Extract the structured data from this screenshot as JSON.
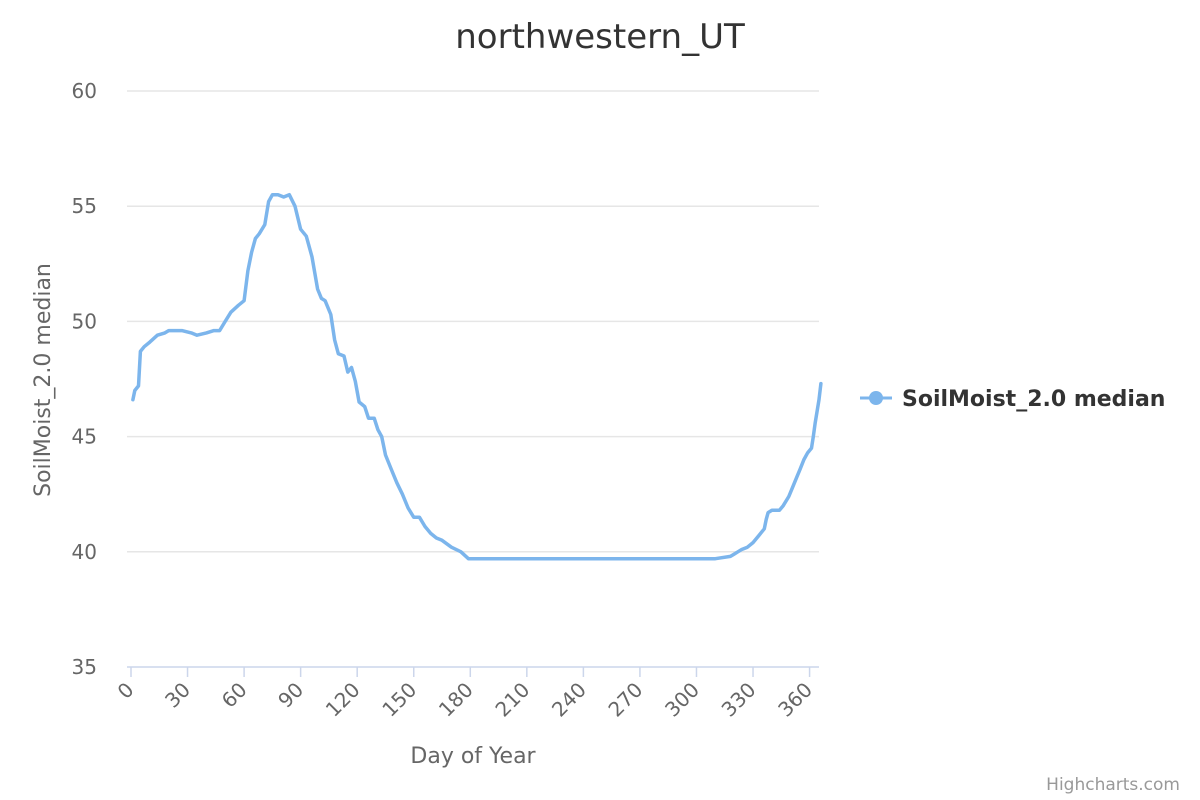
{
  "chart_data": {
    "type": "line",
    "title": "northwestern_UT",
    "xlabel": "Day of Year",
    "ylabel": "SoilMoist_2.0 median",
    "xlim": [
      0,
      365
    ],
    "ylim": [
      35,
      60
    ],
    "xticks": [
      0,
      30,
      60,
      90,
      120,
      150,
      180,
      210,
      240,
      270,
      300,
      330,
      360
    ],
    "yticks": [
      35,
      40,
      45,
      50,
      55,
      60
    ],
    "grid": true,
    "legend_position": "right",
    "credits": "Highcharts.com",
    "series": [
      {
        "name": "SoilMoist_2.0 median",
        "color": "#7cb5ec",
        "points": [
          [
            1,
            46.6
          ],
          [
            2,
            47.0
          ],
          [
            4,
            47.2
          ],
          [
            5,
            48.7
          ],
          [
            7,
            48.9
          ],
          [
            10,
            49.1
          ],
          [
            14,
            49.4
          ],
          [
            18,
            49.5
          ],
          [
            20,
            49.6
          ],
          [
            24,
            49.6
          ],
          [
            27,
            49.6
          ],
          [
            32,
            49.5
          ],
          [
            35,
            49.4
          ],
          [
            40,
            49.5
          ],
          [
            44,
            49.6
          ],
          [
            47,
            49.6
          ],
          [
            50,
            50.0
          ],
          [
            53,
            50.4
          ],
          [
            57,
            50.7
          ],
          [
            60,
            50.9
          ],
          [
            62,
            52.2
          ],
          [
            64,
            53.0
          ],
          [
            66,
            53.6
          ],
          [
            68,
            53.8
          ],
          [
            71,
            54.2
          ],
          [
            73,
            55.2
          ],
          [
            75,
            55.5
          ],
          [
            78,
            55.5
          ],
          [
            81,
            55.4
          ],
          [
            84,
            55.5
          ],
          [
            87,
            55.0
          ],
          [
            90,
            54.0
          ],
          [
            93,
            53.7
          ],
          [
            96,
            52.8
          ],
          [
            99,
            51.4
          ],
          [
            101,
            51.0
          ],
          [
            103,
            50.9
          ],
          [
            106,
            50.3
          ],
          [
            108,
            49.2
          ],
          [
            110,
            48.6
          ],
          [
            113,
            48.5
          ],
          [
            115,
            47.8
          ],
          [
            117,
            48.0
          ],
          [
            119,
            47.4
          ],
          [
            121,
            46.5
          ],
          [
            124,
            46.3
          ],
          [
            126,
            45.8
          ],
          [
            129,
            45.8
          ],
          [
            131,
            45.3
          ],
          [
            133,
            45.0
          ],
          [
            135,
            44.2
          ],
          [
            138,
            43.6
          ],
          [
            141,
            43.0
          ],
          [
            144,
            42.5
          ],
          [
            147,
            41.9
          ],
          [
            150,
            41.5
          ],
          [
            153,
            41.5
          ],
          [
            156,
            41.1
          ],
          [
            159,
            40.8
          ],
          [
            162,
            40.6
          ],
          [
            165,
            40.5
          ],
          [
            170,
            40.2
          ],
          [
            175,
            40.0
          ],
          [
            179,
            39.7
          ],
          [
            185,
            39.7
          ],
          [
            200,
            39.7
          ],
          [
            220,
            39.7
          ],
          [
            240,
            39.7
          ],
          [
            260,
            39.7
          ],
          [
            280,
            39.7
          ],
          [
            300,
            39.7
          ],
          [
            310,
            39.7
          ],
          [
            318,
            39.8
          ],
          [
            320,
            39.9
          ],
          [
            322,
            40.0
          ],
          [
            324,
            40.1
          ],
          [
            327,
            40.2
          ],
          [
            330,
            40.4
          ],
          [
            333,
            40.7
          ],
          [
            336,
            41.0
          ],
          [
            337,
            41.4
          ],
          [
            338,
            41.7
          ],
          [
            340,
            41.8
          ],
          [
            344,
            41.8
          ],
          [
            346,
            42.0
          ],
          [
            349,
            42.4
          ],
          [
            351,
            42.8
          ],
          [
            353,
            43.2
          ],
          [
            355,
            43.6
          ],
          [
            357,
            44.0
          ],
          [
            359,
            44.3
          ],
          [
            361,
            44.5
          ],
          [
            362,
            45.0
          ],
          [
            363,
            45.6
          ],
          [
            365,
            46.6
          ],
          [
            366,
            47.3
          ]
        ]
      }
    ]
  }
}
